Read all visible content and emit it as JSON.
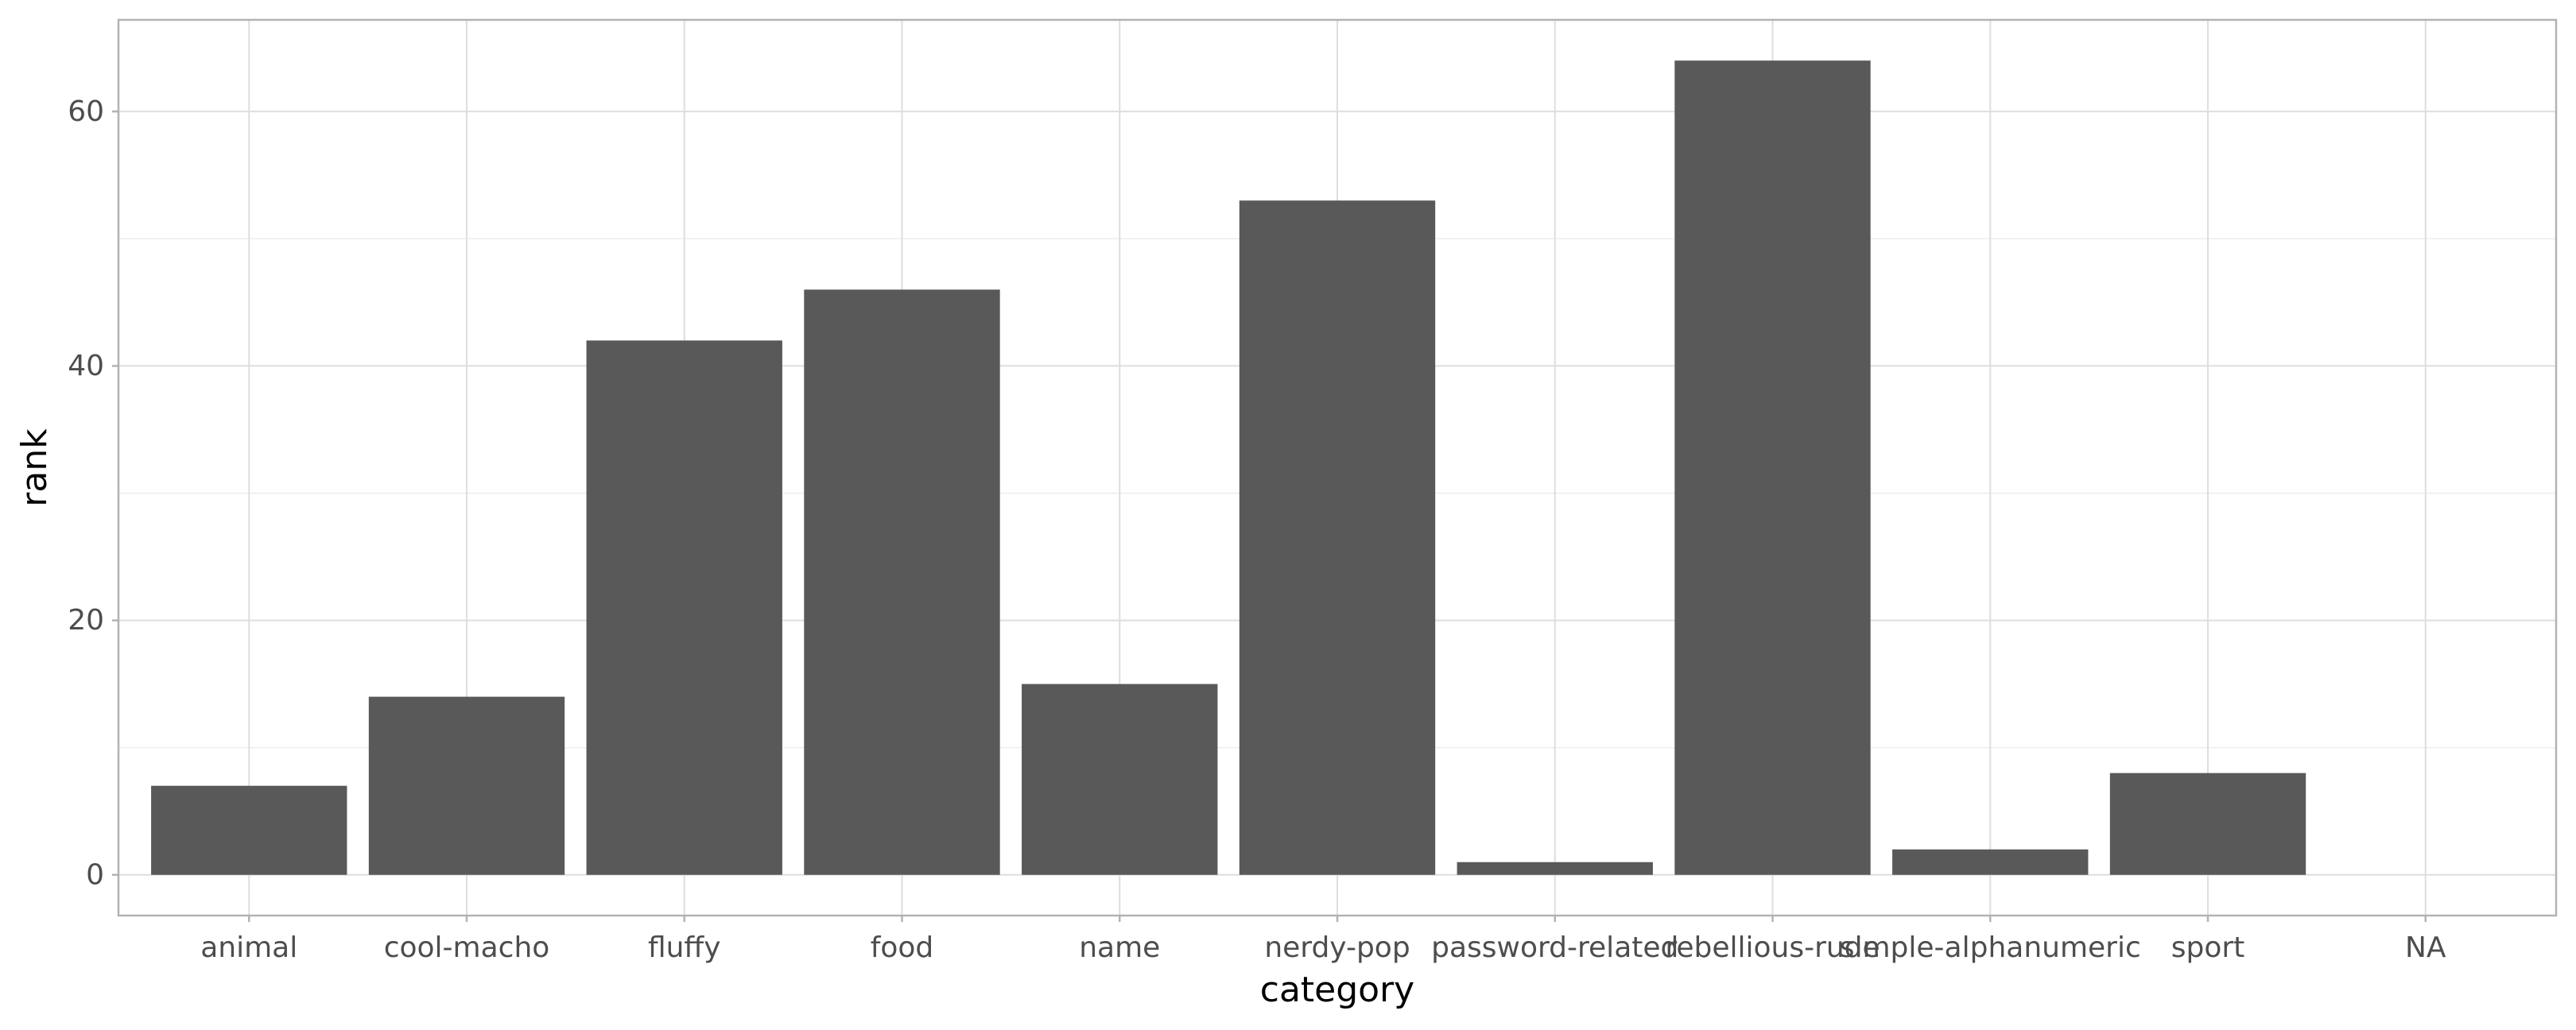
{
  "chart_data": {
    "type": "bar",
    "title": "",
    "xlabel": "category",
    "ylabel": "rank",
    "categories": [
      "animal",
      "cool-macho",
      "fluffy",
      "food",
      "name",
      "nerdy-pop",
      "password-related",
      "rebellious-rude",
      "simple-alphanumeric",
      "sport",
      "NA"
    ],
    "values": [
      7,
      14,
      42,
      46,
      15,
      53,
      1,
      64,
      2,
      8,
      null
    ],
    "ylim": [
      -3.2,
      67.2
    ],
    "yticks": [
      0,
      20,
      40,
      60
    ],
    "yminor": [
      10,
      30,
      50
    ],
    "grid": true,
    "bar_color": "#595959",
    "legend": "none"
  }
}
